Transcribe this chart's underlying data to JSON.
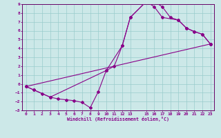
{
  "xlabel": "Windchill (Refroidissement éolien,°C)",
  "bg_color": "#cce8e8",
  "grid_color": "#99cccc",
  "line_color": "#880088",
  "spine_color": "#660066",
  "xlim": [
    -0.5,
    23.5
  ],
  "ylim": [
    -3,
    9
  ],
  "xticks": [
    0,
    1,
    2,
    3,
    4,
    5,
    6,
    7,
    8,
    9,
    10,
    11,
    12,
    13,
    15,
    16,
    17,
    18,
    19,
    20,
    21,
    22,
    23
  ],
  "yticks": [
    -3,
    -2,
    -1,
    0,
    1,
    2,
    3,
    4,
    5,
    6,
    7,
    8,
    9
  ],
  "line1_x": [
    0,
    1,
    2,
    3,
    4,
    5,
    6,
    7,
    8,
    9,
    10,
    11,
    12,
    13,
    15,
    16,
    17,
    18,
    19,
    20,
    21,
    22,
    23
  ],
  "line1_y": [
    -0.3,
    -0.7,
    -1.1,
    -1.5,
    -1.7,
    -1.8,
    -1.9,
    -2.1,
    -2.7,
    -0.9,
    1.5,
    2.0,
    4.3,
    7.5,
    9.3,
    9.3,
    8.7,
    7.5,
    7.2,
    6.3,
    5.9,
    5.6,
    4.5
  ],
  "line2_x": [
    0,
    1,
    3,
    10,
    12,
    13,
    15,
    16,
    17,
    19,
    20,
    21,
    22,
    23
  ],
  "line2_y": [
    -0.3,
    -0.7,
    -1.5,
    1.5,
    4.3,
    7.5,
    9.3,
    8.7,
    7.5,
    7.2,
    6.3,
    5.9,
    5.6,
    4.5
  ],
  "line3_x": [
    0,
    23
  ],
  "line3_y": [
    -0.3,
    4.5
  ]
}
